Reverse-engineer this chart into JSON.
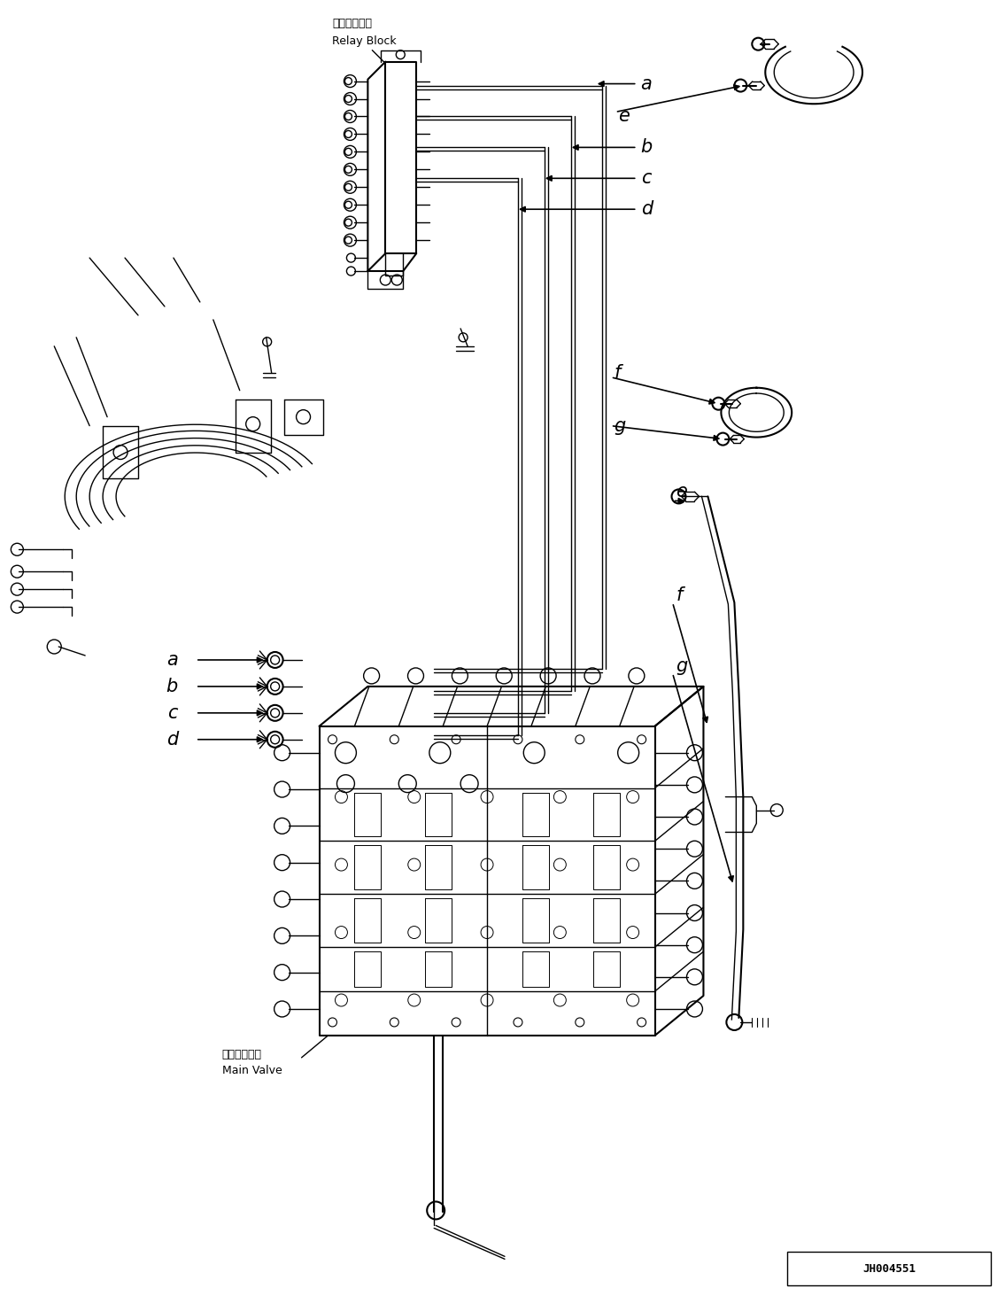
{
  "background_color": "#ffffff",
  "line_color": "#000000",
  "fig_width": 11.35,
  "fig_height": 14.63,
  "dpi": 100,
  "relay_block_label_jp": "中継ブロック",
  "relay_block_label_en": "Relay Block",
  "main_valve_label_jp": "メインバルブ",
  "main_valve_label_en": "Main Valve",
  "part_number": "JH004551"
}
